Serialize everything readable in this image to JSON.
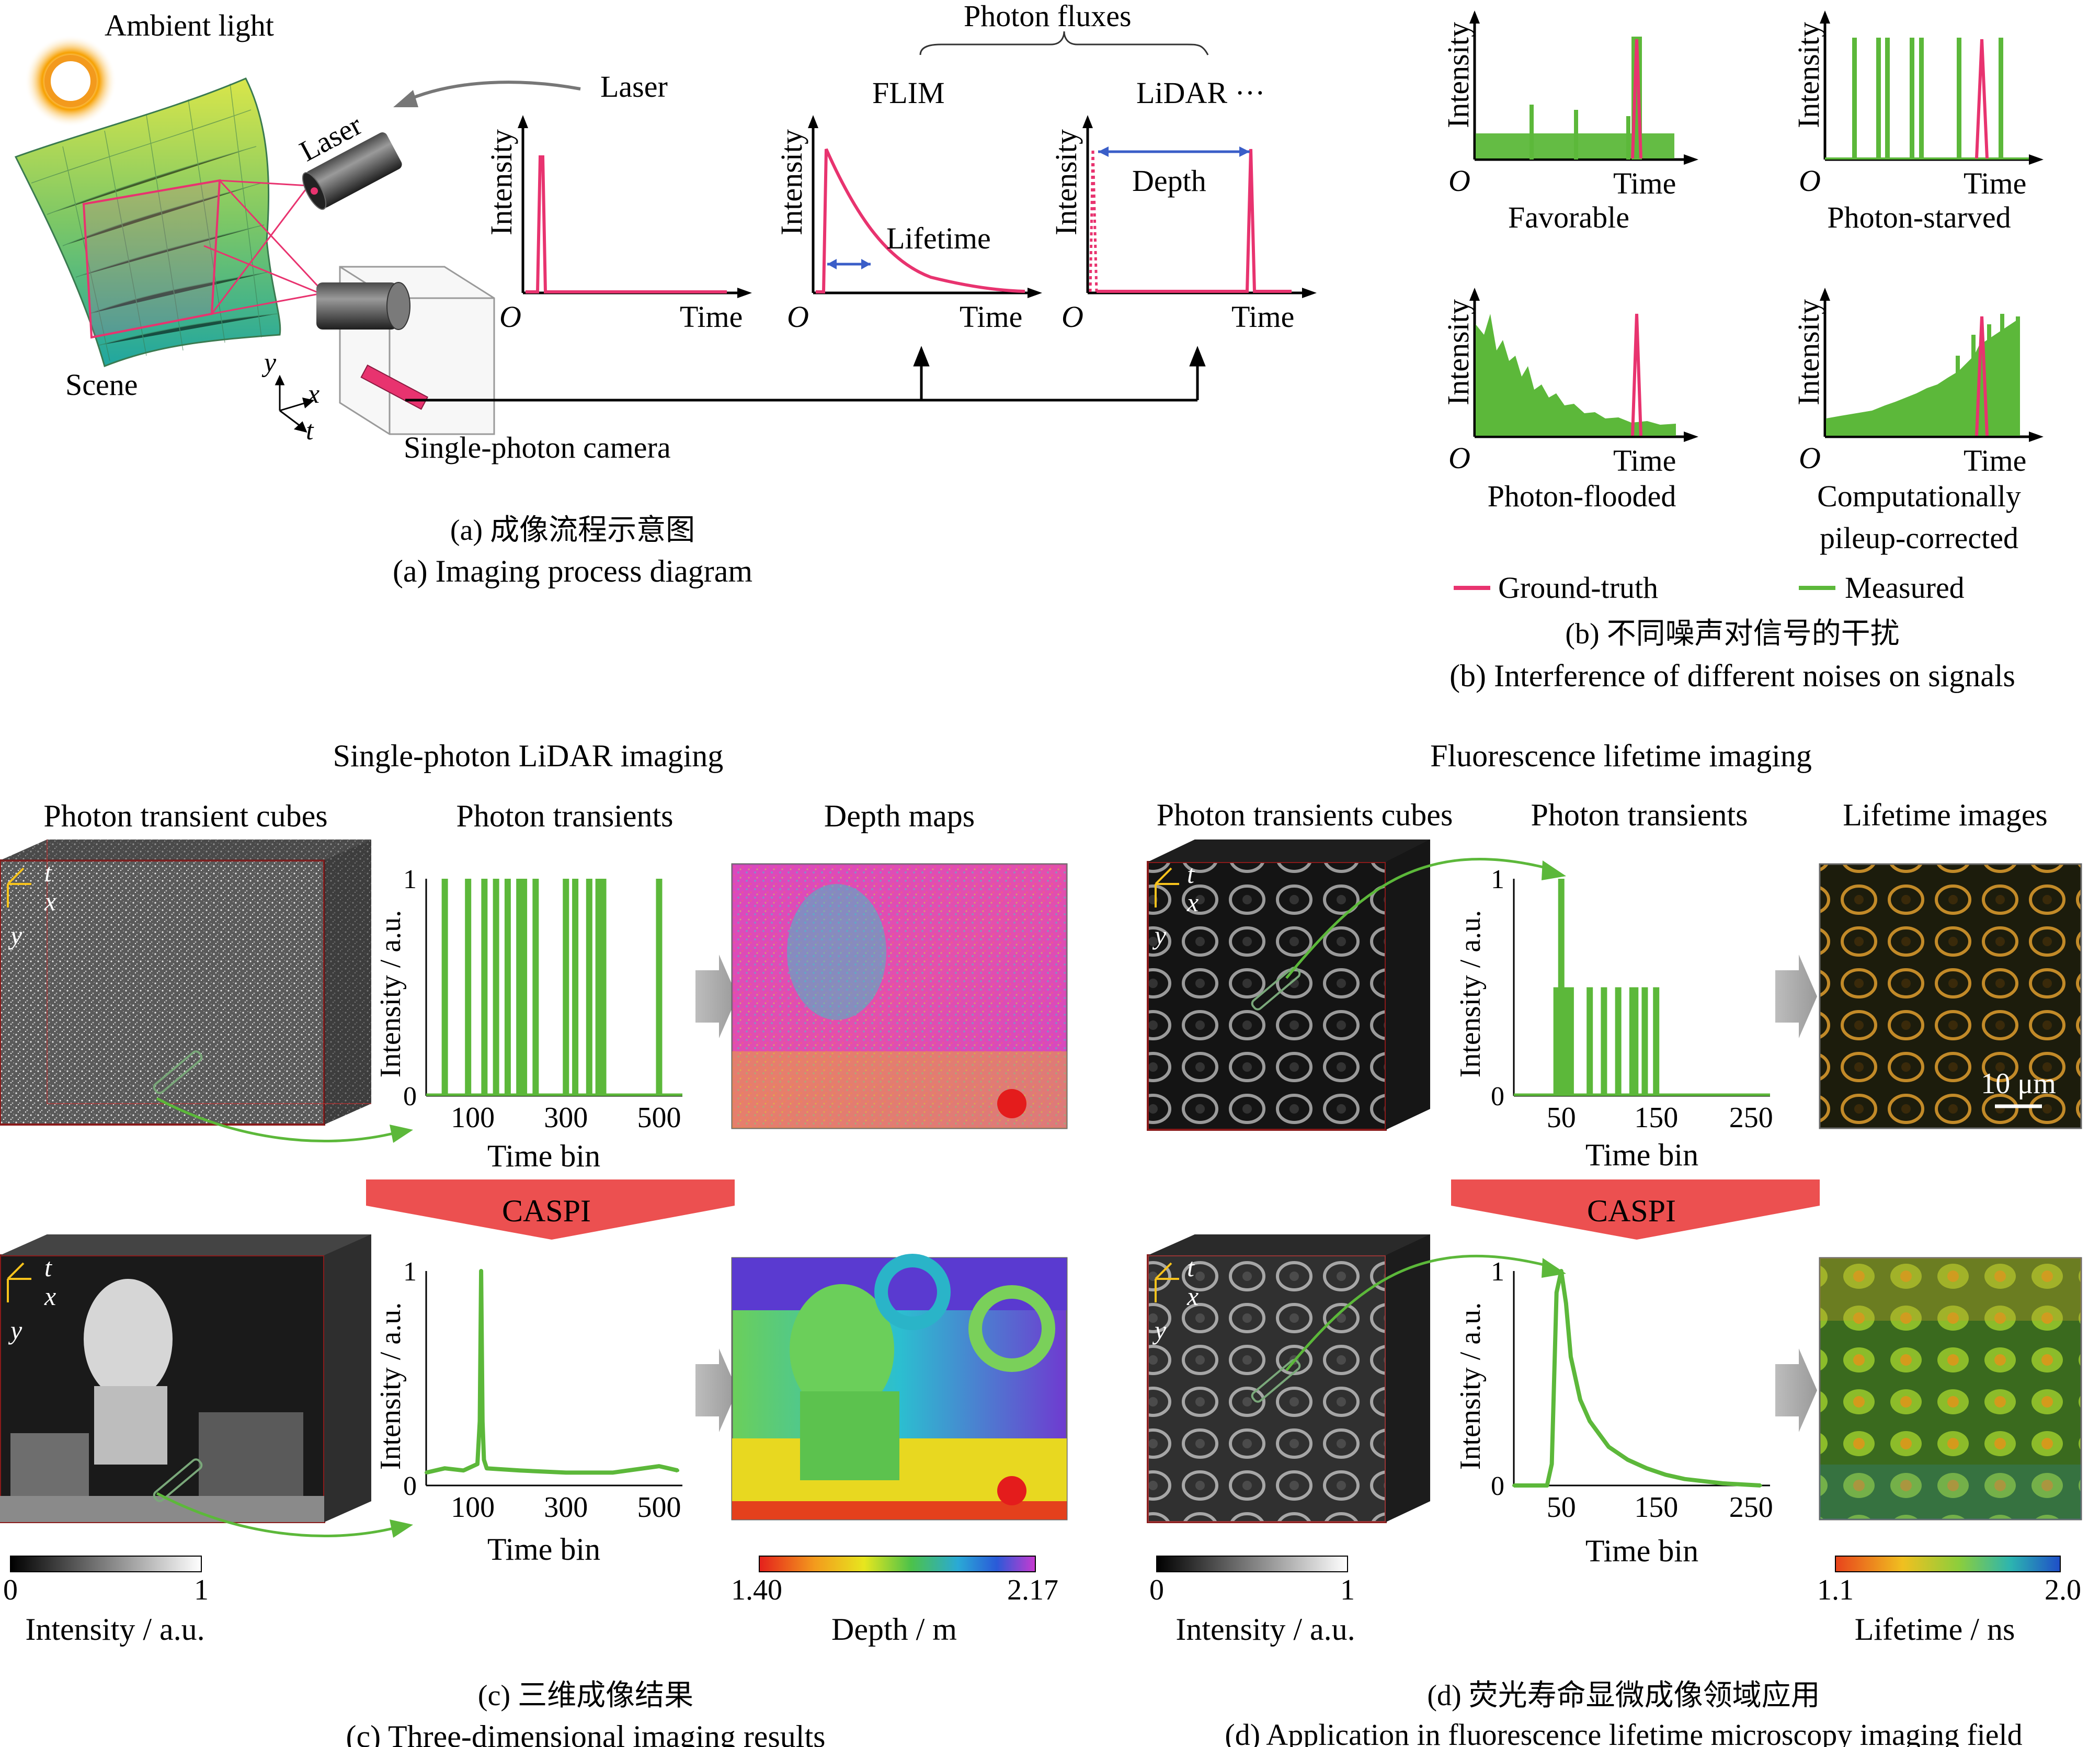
{
  "panel_a": {
    "ambient_light": "Ambient light",
    "laser_callout": "Laser",
    "laser_body": "Laser",
    "scene": "Scene",
    "camera": "Single-photon camera",
    "axis_y": "y",
    "axis_x": "x",
    "axis_t": "t",
    "photon_fluxes": "Photon fluxes",
    "flim": "FLIM",
    "lidar": "LiDAR ···",
    "intensity": "Intensity",
    "time": "Time",
    "origin": "O",
    "lifetime": "Lifetime",
    "depth": "Depth",
    "caption_cn": "(a) 成像流程示意图",
    "caption_en": "(a) Imaging process diagram"
  },
  "panel_b": {
    "intensity": "Intensity",
    "time": "Time",
    "origin": "O",
    "favorable": "Favorable",
    "photon_starved": "Photon-starved",
    "photon_flooded": "Photon-flooded",
    "corrected_line1": "Computationally",
    "corrected_line2": "pileup-corrected",
    "legend_gt": "Ground-truth",
    "legend_measured": "Measured",
    "caption_cn": "(b) 不同噪声对信号的干扰",
    "caption_en": "(b) Interference of different noises on signals",
    "colors": {
      "ground_truth": "#e8336f",
      "measured": "#5cb83a"
    }
  },
  "panel_c": {
    "title": "Single-photon LiDAR imaging",
    "col_cubes": "Photon transient cubes",
    "col_transients": "Photon transients",
    "col_maps": "Depth maps",
    "caspi": "CASPI",
    "ylabel": "Intensity / a.u.",
    "xlabel": "Time bin",
    "y_ticks": [
      "0",
      "1"
    ],
    "x_ticks": [
      "100",
      "300",
      "500"
    ],
    "intensity_bar_min": "0",
    "intensity_bar_max": "1",
    "intensity_bar_label": "Intensity / a.u.",
    "depth_bar_min": "1.40",
    "depth_bar_max": "2.17",
    "depth_bar_label": "Depth / m",
    "caption_cn": "(c) 三维成像结果",
    "caption_en": "(c) Three-dimensional imaging results"
  },
  "panel_d": {
    "title": "Fluorescence lifetime imaging",
    "col_cubes": "Photon transients cubes",
    "col_transients": "Photon transients",
    "col_images": "Lifetime images",
    "caspi": "CASPI",
    "ylabel": "Intensity / a.u.",
    "xlabel": "Time bin",
    "y_ticks": [
      "0",
      "1"
    ],
    "x_ticks": [
      "50",
      "150",
      "250"
    ],
    "scale_bar": "10 μm",
    "intensity_bar_min": "0",
    "intensity_bar_max": "1",
    "intensity_bar_label": "Intensity / a.u.",
    "lifetime_bar_min": "1.1",
    "lifetime_bar_max": "2.0",
    "lifetime_bar_label": "Lifetime / ns",
    "caption_cn": "(d) 荧光寿命显微成像领域应用",
    "caption_en": "(d) Application in fluorescence lifetime microscopy imaging field"
  },
  "chart_data": [
    {
      "type": "bar",
      "title": "",
      "xlabel": "Time bin",
      "ylabel": "Intensity / a.u.",
      "xlim": [
        0,
        550
      ],
      "ylim": [
        0,
        1
      ],
      "series": [
        {
          "x": [
            40,
            90,
            125,
            150,
            175,
            200,
            210,
            235,
            300,
            320,
            350,
            370,
            380,
            500
          ],
          "values": [
            1,
            1,
            1,
            1,
            1,
            1,
            1,
            1,
            1,
            1,
            1,
            1,
            1,
            1
          ]
        }
      ]
    },
    {
      "type": "line",
      "title": "",
      "xlabel": "Time bin",
      "ylabel": "Intensity / a.u.",
      "xlim": [
        0,
        550
      ],
      "ylim": [
        0,
        1
      ],
      "series": [
        {
          "x": [
            0,
            40,
            80,
            100,
            110,
            115,
            118,
            121,
            124,
            130,
            200,
            300,
            400,
            500,
            540
          ],
          "values": [
            0.06,
            0.08,
            0.07,
            0.09,
            0.1,
            0.3,
            1.0,
            0.3,
            0.12,
            0.08,
            0.07,
            0.06,
            0.06,
            0.09,
            0.07
          ]
        }
      ]
    },
    {
      "type": "bar",
      "title": "",
      "xlabel": "Time bin",
      "ylabel": "Intensity / a.u.",
      "xlim": [
        0,
        270
      ],
      "ylim": [
        0,
        1
      ],
      "series": [
        {
          "x": [
            45,
            48,
            50,
            52,
            55,
            60,
            80,
            95,
            110,
            125,
            128,
            138,
            150
          ],
          "values": [
            0.5,
            0.5,
            1,
            0.5,
            0.5,
            0.5,
            0.5,
            0.5,
            0.5,
            0.5,
            0.5,
            0.5,
            0.5
          ]
        }
      ]
    },
    {
      "type": "line",
      "title": "",
      "xlabel": "Time bin",
      "ylabel": "Intensity / a.u.",
      "xlim": [
        0,
        270
      ],
      "ylim": [
        0,
        1
      ],
      "series": [
        {
          "x": [
            0,
            35,
            40,
            45,
            50,
            55,
            60,
            70,
            80,
            90,
            100,
            120,
            140,
            160,
            180,
            200,
            220,
            260
          ],
          "values": [
            0,
            0,
            0.1,
            0.9,
            1.0,
            0.85,
            0.6,
            0.4,
            0.3,
            0.24,
            0.18,
            0.12,
            0.08,
            0.05,
            0.03,
            0.02,
            0.01,
            0
          ]
        }
      ]
    }
  ]
}
